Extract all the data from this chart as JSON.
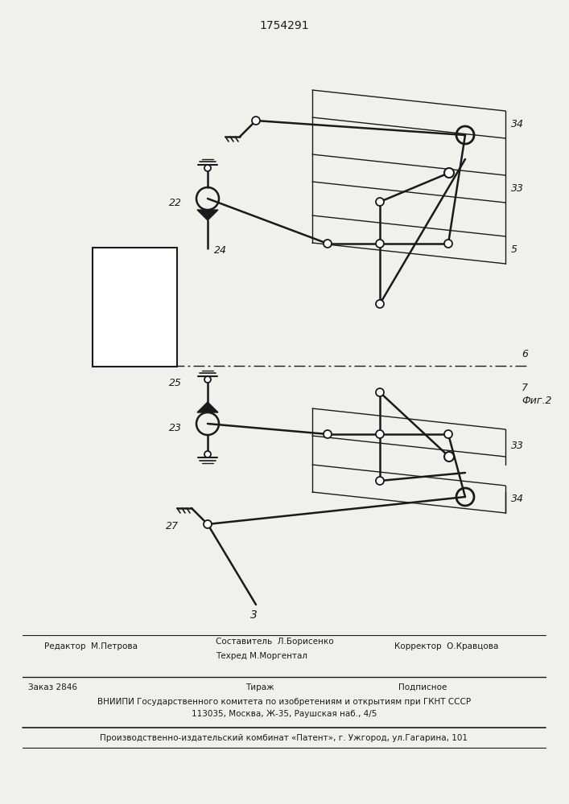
{
  "title": "1754291",
  "fig2_label": "Фиг.2",
  "background_color": "#f0f0ec",
  "line_color": "#1a1a1a",
  "footer": {
    "editor": "Редактор  М.Петрова",
    "composer": "Составитель  Л.Борисенко",
    "techred": "Техред М.Моргентал",
    "corrector": "Корректор  О.Кравцова",
    "order": "Заказ 2846",
    "tirazh": "Тираж",
    "podpisnoe": "Подписное",
    "vniipи": "ВНИИПИ Государственного комитета по изобретениям и открытиям при ГКНТ СССР",
    "address": "113035, Москва, Ж-35, Раушская наб., 4/5",
    "publisher": "Производственно-издательский комбинат «Патент», г. Ужгород, ул.Гагарина, 101"
  }
}
